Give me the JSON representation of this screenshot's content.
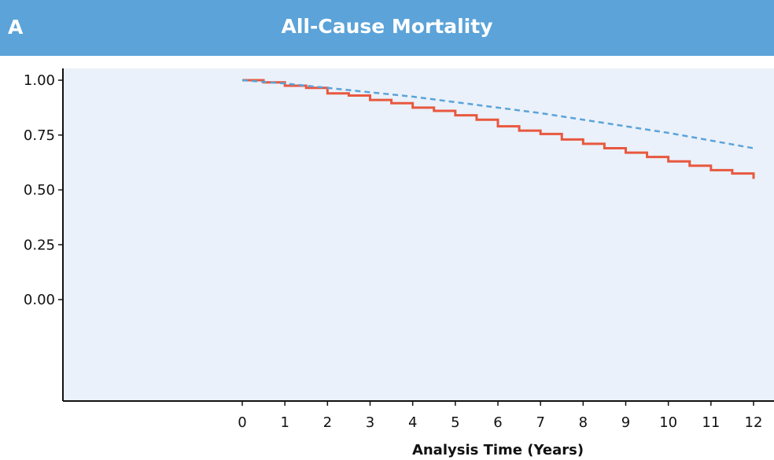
{
  "header": {
    "panel_letter": "A",
    "title": "All-Cause Mortality",
    "background_color": "#5ba3d9"
  },
  "chart_data": {
    "type": "line",
    "title": "All-Cause Mortality",
    "xlabel": "Analysis Time (Years)",
    "ylabel": "",
    "xlim": [
      0,
      12
    ],
    "ylim": [
      0,
      1
    ],
    "x_ticks": [
      0,
      1,
      2,
      3,
      4,
      5,
      6,
      7,
      8,
      9,
      10,
      11,
      12
    ],
    "y_ticks": [
      "0.00",
      "0.25",
      "0.50",
      "0.75",
      "1.00"
    ],
    "grid": false,
    "plot_background": "#eaf1fa",
    "series": [
      {
        "style": "step",
        "color": "#e8583f",
        "x": [
          0,
          0.5,
          1,
          1.5,
          2,
          2.5,
          3,
          3.5,
          4,
          4.5,
          5,
          5.5,
          6,
          6.5,
          7,
          7.5,
          8,
          8.5,
          9,
          9.5,
          10,
          10.5,
          11,
          11.5,
          12
        ],
        "y": [
          1.0,
          0.99,
          0.975,
          0.965,
          0.94,
          0.93,
          0.91,
          0.895,
          0.875,
          0.86,
          0.84,
          0.82,
          0.79,
          0.77,
          0.755,
          0.73,
          0.71,
          0.69,
          0.67,
          0.65,
          0.63,
          0.61,
          0.59,
          0.575,
          0.55
        ]
      },
      {
        "style": "dashed",
        "color": "#5ba3d9",
        "x": [
          0,
          1,
          2,
          3,
          4,
          5,
          6,
          7,
          8,
          9,
          10,
          11,
          12
        ],
        "y": [
          1.0,
          0.985,
          0.965,
          0.945,
          0.925,
          0.9,
          0.875,
          0.85,
          0.82,
          0.79,
          0.76,
          0.725,
          0.69
        ]
      }
    ]
  }
}
